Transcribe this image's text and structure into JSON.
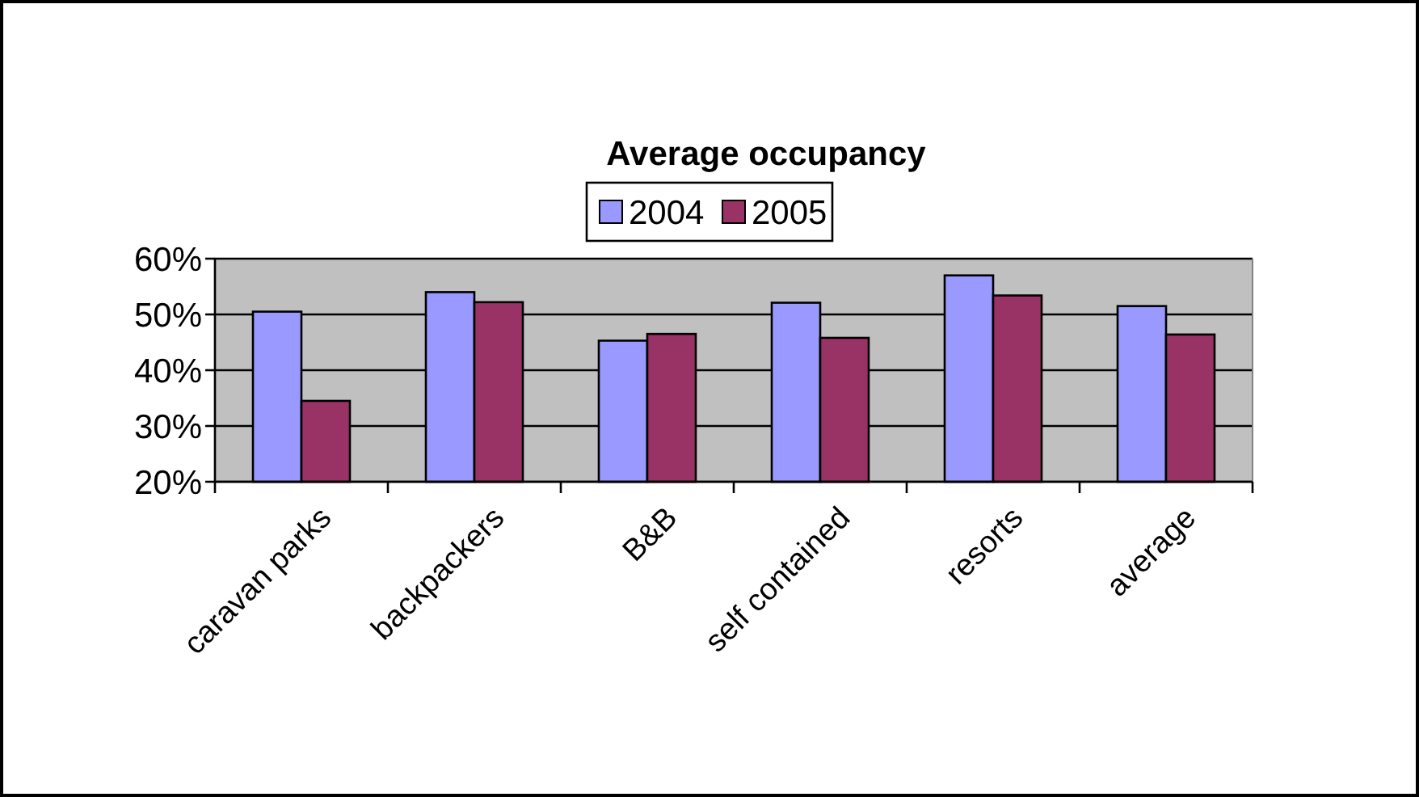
{
  "chart_data": {
    "type": "bar",
    "title": "Average occupancy",
    "categories": [
      "caravan parks",
      "backpackers",
      "B&B",
      "self contained",
      "resorts",
      "average"
    ],
    "series": [
      {
        "name": "2004",
        "color": "#9999ff",
        "values": [
          50.5,
          54,
          45.3,
          52.1,
          57,
          51.5
        ]
      },
      {
        "name": "2005",
        "color": "#993366",
        "values": [
          34.5,
          52.2,
          46.5,
          45.8,
          53.4,
          46.4
        ]
      }
    ],
    "ylim": [
      20,
      60
    ],
    "yticks": [
      {
        "value": 20,
        "label": "20%"
      },
      {
        "value": 30,
        "label": "30%"
      },
      {
        "value": 40,
        "label": "40%"
      },
      {
        "value": 50,
        "label": "50%"
      },
      {
        "value": 60,
        "label": "60%"
      }
    ],
    "grid": "y",
    "legend": "top"
  }
}
